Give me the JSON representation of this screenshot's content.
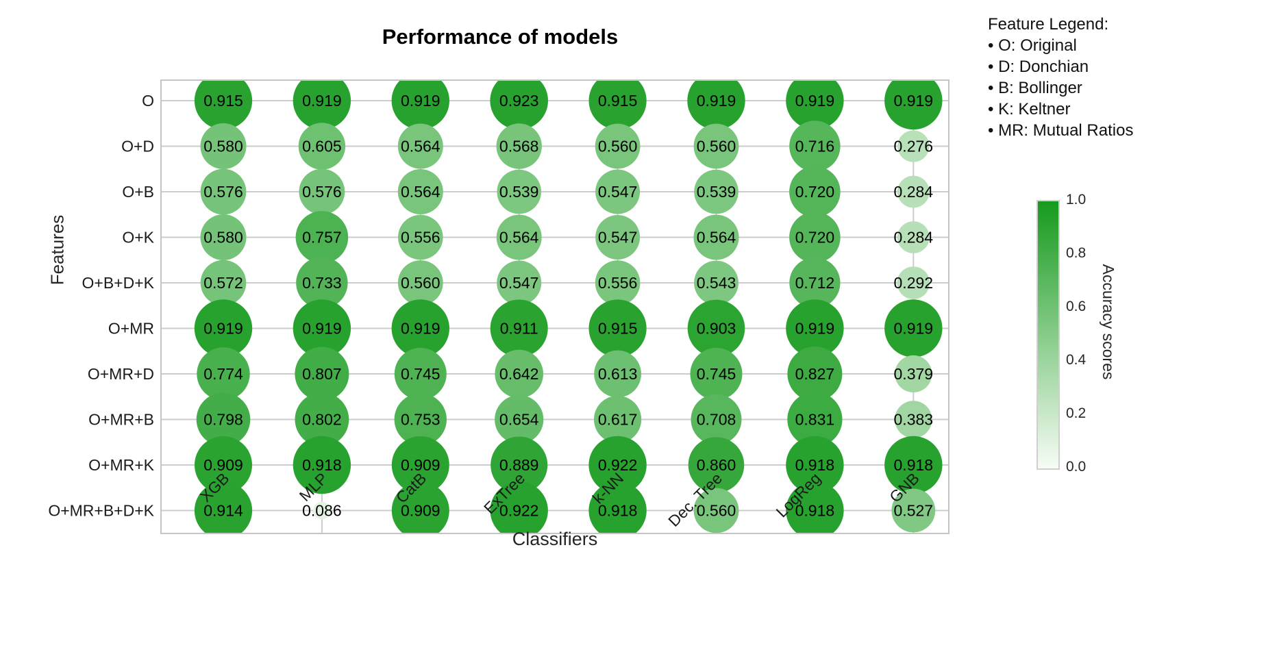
{
  "feature_legend": {
    "heading": "Feature Legend:",
    "items": [
      "• O: Original",
      "• D: Donchian",
      "• B: Bollinger",
      "• K: Keltner",
      "• MR: Mutual Ratios"
    ]
  },
  "colorbar": {
    "label": "Accuracy scores",
    "ticks": [
      "1.0",
      "0.8",
      "0.6",
      "0.4",
      "0.2",
      "0.0"
    ],
    "min_color": "#f7fcf5",
    "max_color": "#169a1d",
    "border_color": "#cfcfcf"
  },
  "chart_data": {
    "type": "scatter",
    "variant": "bubble-matrix",
    "title": "Performance of models",
    "xlabel": "Classifiers",
    "ylabel": "Features",
    "value_format": "3-decimals",
    "size_by": "value",
    "color_by": "value",
    "grid": true,
    "x_categories": [
      "XGB",
      "MLP",
      "CatB",
      "ExTree",
      "k-NN",
      "Dec. Tree",
      "LogReg",
      "GNB"
    ],
    "y_categories": [
      "O",
      "O+D",
      "O+B",
      "O+K",
      "O+B+D+K",
      "O+MR",
      "O+MR+D",
      "O+MR+B",
      "O+MR+K",
      "O+MR+B+D+K"
    ],
    "series": [
      {
        "name": "O",
        "values": [
          0.915,
          0.919,
          0.919,
          0.923,
          0.915,
          0.919,
          0.919,
          0.919
        ]
      },
      {
        "name": "O+D",
        "values": [
          0.58,
          0.605,
          0.564,
          0.568,
          0.56,
          0.56,
          0.716,
          0.276
        ]
      },
      {
        "name": "O+B",
        "values": [
          0.576,
          0.576,
          0.564,
          0.539,
          0.547,
          0.539,
          0.72,
          0.284
        ]
      },
      {
        "name": "O+K",
        "values": [
          0.58,
          0.757,
          0.556,
          0.564,
          0.547,
          0.564,
          0.72,
          0.284
        ]
      },
      {
        "name": "O+B+D+K",
        "values": [
          0.572,
          0.733,
          0.56,
          0.547,
          0.556,
          0.543,
          0.712,
          0.292
        ]
      },
      {
        "name": "O+MR",
        "values": [
          0.919,
          0.919,
          0.919,
          0.911,
          0.915,
          0.903,
          0.919,
          0.919
        ]
      },
      {
        "name": "O+MR+D",
        "values": [
          0.774,
          0.807,
          0.745,
          0.642,
          0.613,
          0.745,
          0.827,
          0.379
        ]
      },
      {
        "name": "O+MR+B",
        "values": [
          0.798,
          0.802,
          0.753,
          0.654,
          0.617,
          0.708,
          0.831,
          0.383
        ]
      },
      {
        "name": "O+MR+K",
        "values": [
          0.909,
          0.918,
          0.909,
          0.889,
          0.922,
          0.86,
          0.918,
          0.918
        ]
      },
      {
        "name": "O+MR+B+D+K",
        "values": [
          0.914,
          0.086,
          0.909,
          0.922,
          0.918,
          0.56,
          0.918,
          0.527
        ]
      }
    ],
    "color_scale": {
      "min": 0.0,
      "max": 1.0,
      "legend_position": "right"
    }
  }
}
